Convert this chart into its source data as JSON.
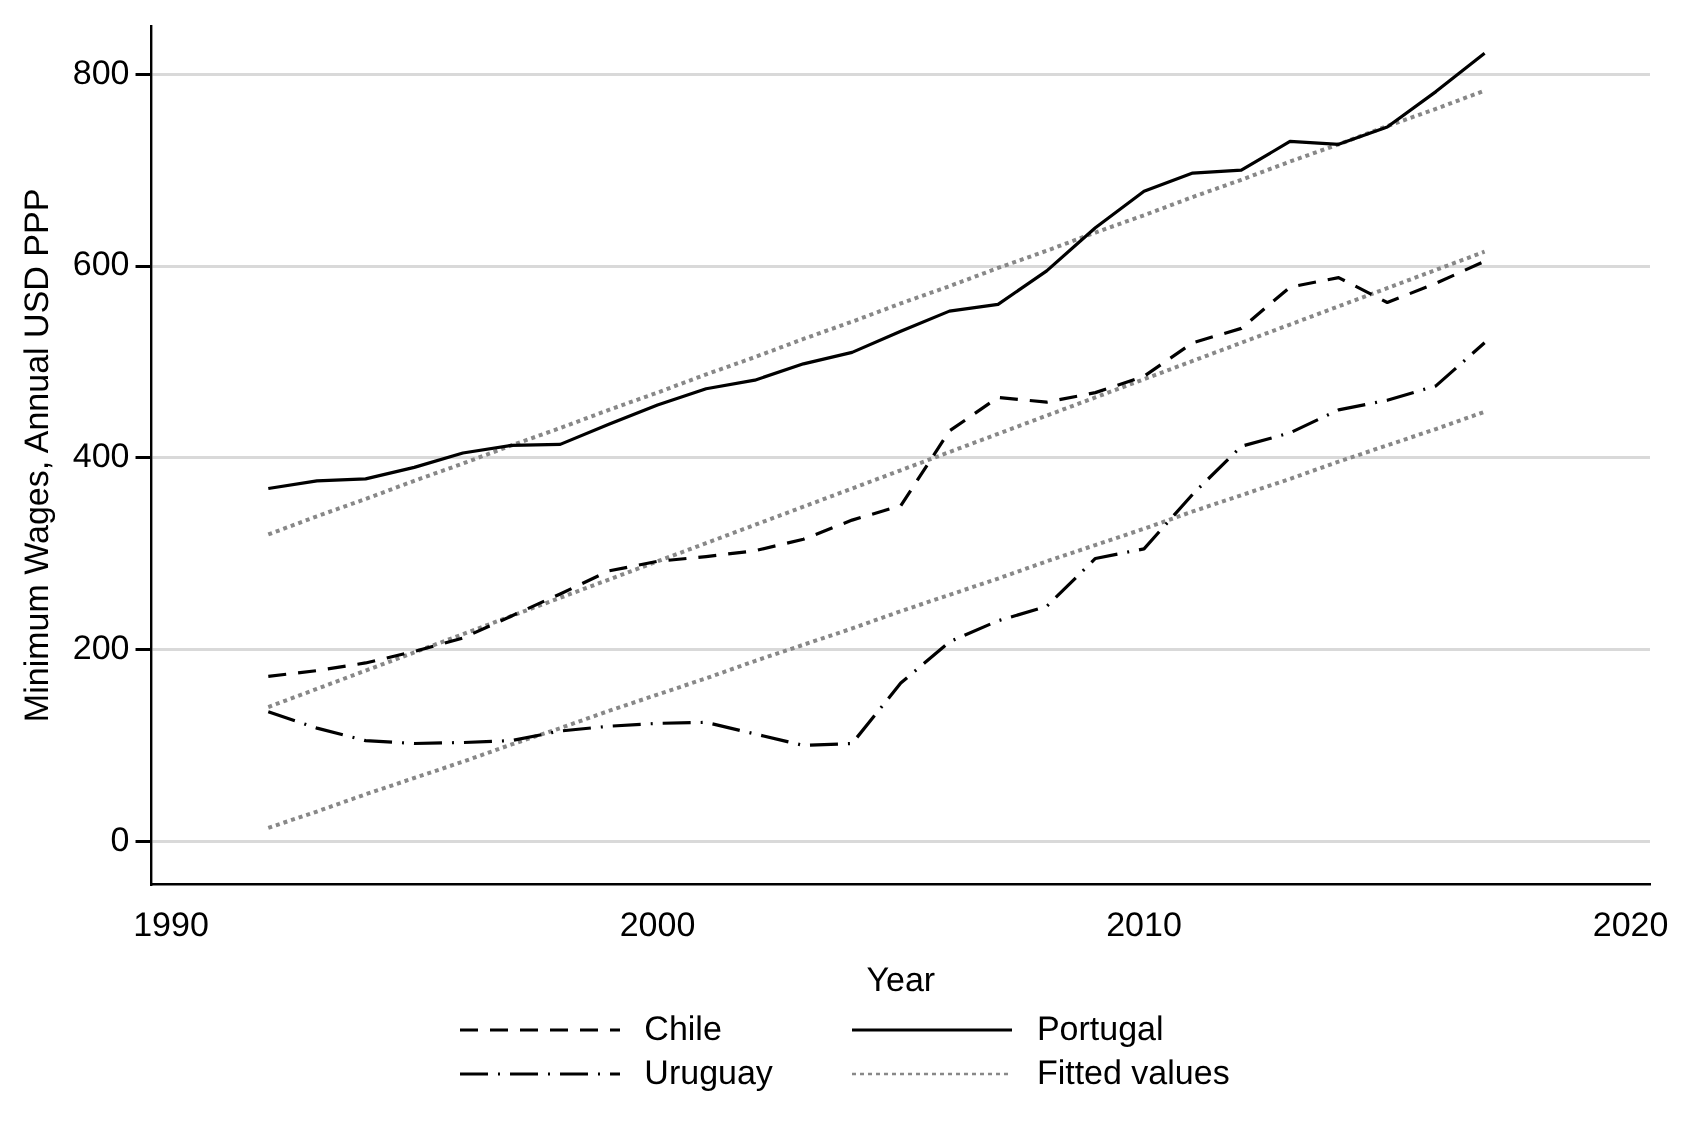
{
  "chart_data": {
    "type": "line",
    "xlabel": "Year",
    "ylabel": "Minimum Wages, Annual USD PPP",
    "x": [
      1992,
      1993,
      1994,
      1995,
      1996,
      1997,
      1998,
      1999,
      2000,
      2001,
      2002,
      2003,
      2004,
      2005,
      2006,
      2007,
      2008,
      2009,
      2010,
      2011,
      2012,
      2013,
      2014,
      2015,
      2016,
      2017
    ],
    "series": [
      {
        "name": "Chile",
        "color": "#000000",
        "line_style": "dashed",
        "values": [
          172,
          178,
          186,
          198,
          212,
          235,
          258,
          282,
          292,
          297,
          303,
          315,
          335,
          350,
          428,
          463,
          458,
          468,
          485,
          520,
          535,
          578,
          588,
          562,
          582,
          605
        ]
      },
      {
        "name": "Uruguay",
        "color": "#000000",
        "line_style": "dashdot",
        "values": [
          135,
          118,
          105,
          102,
          103,
          105,
          115,
          120,
          123,
          124,
          112,
          100,
          102,
          165,
          208,
          230,
          245,
          295,
          305,
          362,
          412,
          426,
          450,
          460,
          475,
          520
        ]
      },
      {
        "name": "Portugal",
        "color": "#000000",
        "line_style": "solid",
        "values": [
          368,
          376,
          378,
          390,
          405,
          413,
          414,
          435,
          455,
          472,
          481,
          498,
          510,
          532,
          553,
          560,
          595,
          640,
          678,
          697,
          700,
          730,
          727,
          745,
          782,
          822
        ]
      },
      {
        "name": "Fitted values",
        "color": "#888888",
        "line_style": "dotted",
        "values": [
          320,
          339,
          357,
          376,
          394,
          413,
          431,
          450,
          468,
          487,
          505,
          524,
          542,
          561,
          579,
          598,
          616,
          635,
          653,
          672,
          690,
          709,
          727,
          746,
          764,
          783
        ]
      },
      {
        "color": "#888888",
        "line_style": "dotted",
        "values": [
          140,
          159,
          178,
          197,
          216,
          235,
          254,
          273,
          292,
          311,
          330,
          349,
          368,
          387,
          406,
          425,
          444,
          463,
          482,
          501,
          520,
          539,
          558,
          577,
          596,
          615
        ]
      },
      {
        "color": "#888888",
        "line_style": "dotted",
        "values": [
          14,
          31,
          49,
          66,
          83,
          101,
          118,
          136,
          153,
          170,
          188,
          205,
          222,
          240,
          257,
          274,
          292,
          309,
          326,
          344,
          361,
          378,
          396,
          413,
          430,
          448
        ]
      }
    ],
    "xlim": [
      1989.6,
      2020.4
    ],
    "xticks": [
      1990,
      2000,
      2010,
      2020
    ],
    "ylim": [
      -45,
      850
    ],
    "yticks": [
      0,
      200,
      400,
      600,
      800
    ],
    "grid": "y",
    "legend": "bottom",
    "marker": "none"
  }
}
